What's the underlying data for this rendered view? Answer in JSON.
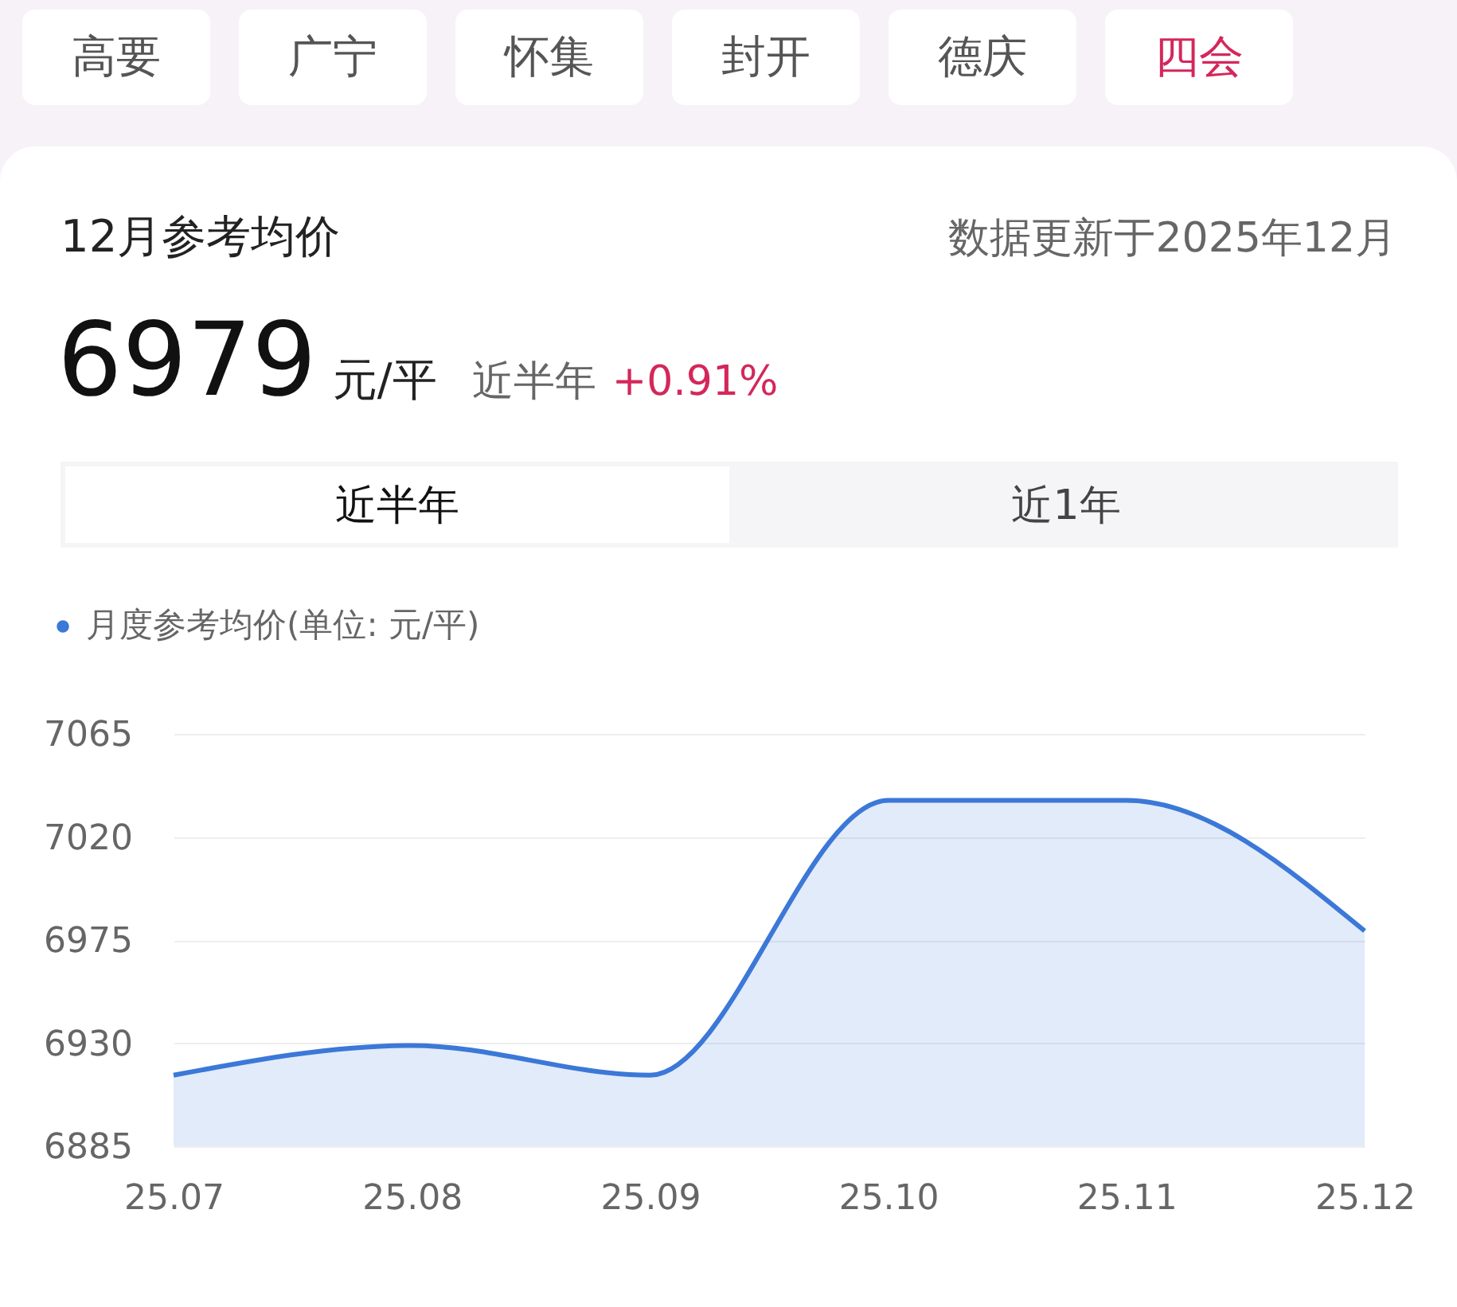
{
  "chart_data": {
    "type": "area",
    "title": "12月参考均价",
    "annotations": [
      "高要",
      "广宁",
      "怀集",
      "封开",
      "德庆",
      "四会",
      "数据更新于2025年12月",
      "6979",
      "元/平",
      "近半年",
      "+0.91%",
      "近半年",
      "近1年"
    ],
    "categories": [
      "25.07",
      "25.08",
      "25.09",
      "25.10",
      "25.11",
      "25.12"
    ],
    "series": [
      {
        "name": "月度参考均价(单位: 元/平)",
        "color": "#3b78d8",
        "values": [
          6916,
          6929,
          6916,
          7036,
          7036,
          6979
        ]
      }
    ],
    "ylim": [
      6885,
      7065
    ],
    "yticks": [
      6885,
      6930,
      6975,
      7020,
      7065
    ],
    "grid": "y",
    "legend": "top left"
  }
}
